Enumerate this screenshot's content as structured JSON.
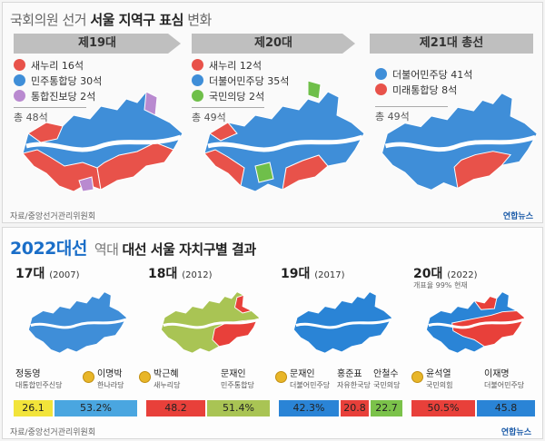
{
  "top": {
    "title_light": "국회의원 선거",
    "title_bold": "서울 지역구 표심",
    "title_tail": "변화",
    "panels": [
      {
        "banner": "제19대",
        "legend": [
          {
            "label": "새누리 16석",
            "color": "#e8524a"
          },
          {
            "label": "민주통합당 30석",
            "color": "#3f8ed8"
          },
          {
            "label": "통합진보당 2석",
            "color": "#b98ad0"
          }
        ],
        "total": "총 48석"
      },
      {
        "banner": "제20대",
        "legend": [
          {
            "label": "새누리 12석",
            "color": "#e8524a"
          },
          {
            "label": "더불어민주당 35석",
            "color": "#3f8ed8"
          },
          {
            "label": "국민의당 2석",
            "color": "#6fbf4a"
          }
        ],
        "total": "총 49석"
      },
      {
        "banner": "제21대 총선",
        "legend": [
          {
            "label": "더불어민주당 41석",
            "color": "#3f8ed8"
          },
          {
            "label": "미래통합당 8석",
            "color": "#e8524a"
          }
        ],
        "total": "총 49석"
      }
    ],
    "source": "자료/중앙선거관리위원회",
    "brand": "연합뉴스"
  },
  "bottom": {
    "year": "2022",
    "year_suffix": "대선",
    "title_light": "역대",
    "title_bold": "대선 서울 자치구별 결과",
    "elections": [
      {
        "num": "17대",
        "year": "(2007)",
        "candidates": [
          {
            "name": "정동영",
            "party": "대통합민주신당"
          },
          {
            "name": "이명박",
            "party": "한나라당"
          }
        ],
        "bars": [
          {
            "value": "26.1",
            "share": 26.1,
            "color": "#f2e43a"
          },
          {
            "value": "53.2%",
            "share": 53.2,
            "color": "#4aa6e0"
          }
        ]
      },
      {
        "num": "18대",
        "year": "(2012)",
        "candidates": [
          {
            "name": "박근혜",
            "party": "새누리당"
          },
          {
            "name": "문재인",
            "party": "민주통합당"
          }
        ],
        "bars": [
          {
            "value": "48.2",
            "share": 48.2,
            "color": "#e8403a"
          },
          {
            "value": "51.4%",
            "share": 51.4,
            "color": "#a9c454"
          }
        ]
      },
      {
        "num": "19대",
        "year": "(2017)",
        "candidates": [
          {
            "name": "문재인",
            "party": "더불어민주당"
          },
          {
            "name": "홍준표",
            "party": "자유한국당"
          },
          {
            "name": "안철수",
            "party": "국민의당"
          }
        ],
        "bars": [
          {
            "value": "42.3%",
            "share": 42.3,
            "color": "#2a84d6"
          },
          {
            "value": "20.8",
            "share": 20.8,
            "color": "#e8403a"
          },
          {
            "value": "22.7",
            "share": 22.7,
            "color": "#7bc24a"
          }
        ]
      },
      {
        "num": "20대",
        "year": "(2022)",
        "note": "개표율 99% 현재",
        "candidates": [
          {
            "name": "윤석열",
            "party": "국민의힘"
          },
          {
            "name": "이재명",
            "party": "더불어민주당"
          }
        ],
        "bars": [
          {
            "value": "50.5%",
            "share": 50.5,
            "color": "#e8403a"
          },
          {
            "value": "45.8",
            "share": 45.8,
            "color": "#2a84d6"
          }
        ]
      }
    ],
    "source": "자료/중앙선거관리위원회",
    "brand": "연합뉴스"
  }
}
